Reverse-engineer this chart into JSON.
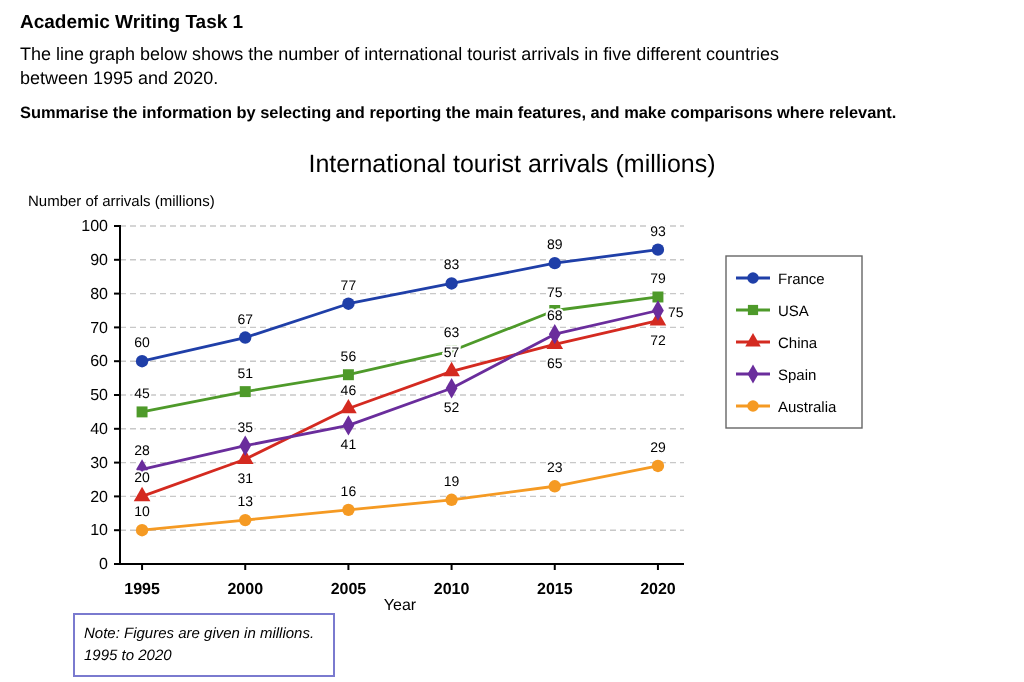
{
  "chart_data": {
    "type": "line",
    "title": "International tourist arrivals (millions)",
    "subtitle": "Academic Writing Task 1",
    "annotations": [
      "The line graph below shows the number of international tourist arrivals in five different countries between 1995 and 2020.",
      "Summarise the information by selecting and reporting the main features, and make comparisons where relevant.",
      "Note:  Figures are given in millions. 1995 to 2020"
    ],
    "xlabel": "Year",
    "ylabel": "Number of arrivals (millions)",
    "categories": [
      "1995",
      "2000",
      "2005",
      "2010",
      "2015",
      "2020"
    ],
    "series": [
      {
        "name": "France",
        "color": "#1f3fa8",
        "marker": "circle",
        "values": [
          60,
          67,
          77,
          83,
          89,
          93
        ]
      },
      {
        "name": "USA",
        "color": "#4e9a2a",
        "marker": "square",
        "values": [
          45,
          51,
          56,
          63,
          75,
          79
        ]
      },
      {
        "name": "China",
        "color": "#d42a20",
        "marker": "triangle",
        "values": [
          20,
          31,
          46,
          57,
          65,
          72
        ]
      },
      {
        "name": "Spain",
        "color": "#6a2d9c",
        "marker": "diamond",
        "values": [
          28,
          35,
          41,
          52,
          68,
          75
        ]
      },
      {
        "name": "Australia",
        "color": "#f59a23",
        "marker": "circle",
        "values": [
          10,
          13,
          16,
          19,
          23,
          29
        ]
      }
    ],
    "ylim": [
      0,
      100
    ],
    "yticks": [
      0,
      10,
      20,
      30,
      40,
      50,
      60,
      70,
      80,
      90,
      100
    ],
    "grid": "y",
    "legend": "right",
    "data_labels": true
  }
}
